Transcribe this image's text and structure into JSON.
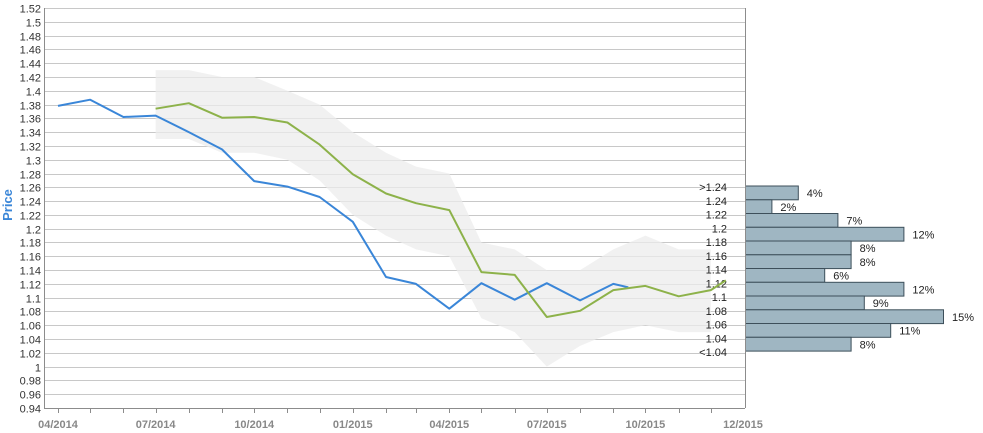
{
  "chart_data": {
    "type": "line",
    "title": "",
    "ylabel": "Price",
    "xlabel": "",
    "ylim": [
      0.94,
      1.52
    ],
    "y_ticks": [
      "0.94",
      "0.96",
      "0.98",
      "1",
      "1.02",
      "1.04",
      "1.06",
      "1.08",
      "1.1",
      "1.12",
      "1.14",
      "1.16",
      "1.18",
      "1.2",
      "1.22",
      "1.24",
      "1.26",
      "1.28",
      "1.3",
      "1.32",
      "1.34",
      "1.36",
      "1.38",
      "1.4",
      "1.42",
      "1.44",
      "1.46",
      "1.48",
      "1.5",
      "1.52"
    ],
    "x_ticks": [
      "04/2014",
      "07/2014",
      "10/2014",
      "01/2015",
      "04/2015",
      "07/2015",
      "10/2015",
      "12/2015"
    ],
    "colors": {
      "historical": "#3a86d8",
      "forecast": "#8db24a",
      "band": "#ececec",
      "histogram": "#9fb6c2",
      "histogram_border": "#3d4f5a"
    },
    "series": [
      {
        "key": "historical",
        "x": [
          "2014-04-01",
          "2014-05-01",
          "2014-06-01",
          "2014-07-01",
          "2014-08-01",
          "2014-09-01",
          "2014-10-01",
          "2014-11-01",
          "2014-12-01",
          "2015-01-01",
          "2015-02-01",
          "2015-03-01",
          "2015-04-01",
          "2015-05-01",
          "2015-06-01",
          "2015-07-01",
          "2015-08-01",
          "2015-09-01",
          "2015-09-15"
        ],
        "values": [
          1.378,
          1.387,
          1.362,
          1.364,
          1.34,
          1.315,
          1.269,
          1.261,
          1.246,
          1.21,
          1.13,
          1.12,
          1.084,
          1.121,
          1.097,
          1.121,
          1.096,
          1.12,
          1.115
        ]
      },
      {
        "key": "forecast",
        "x": [
          "2014-07-01",
          "2014-08-01",
          "2014-09-01",
          "2014-10-01",
          "2014-11-01",
          "2014-12-01",
          "2015-01-01",
          "2015-02-01",
          "2015-03-01",
          "2015-04-01",
          "2015-05-01",
          "2015-06-01",
          "2015-07-01",
          "2015-08-01",
          "2015-09-01",
          "2015-10-01",
          "2015-11-01",
          "2015-12-01",
          "2015-12-15"
        ],
        "values": [
          1.374,
          1.382,
          1.361,
          1.362,
          1.354,
          1.322,
          1.279,
          1.251,
          1.237,
          1.227,
          1.137,
          1.133,
          1.072,
          1.081,
          1.111,
          1.117,
          1.102,
          1.111,
          1.125
        ]
      }
    ],
    "band": {
      "x": [
        "2014-07-01",
        "2014-08-01",
        "2014-09-01",
        "2014-10-01",
        "2014-11-01",
        "2014-12-01",
        "2015-01-01",
        "2015-02-01",
        "2015-03-01",
        "2015-04-01",
        "2015-05-01",
        "2015-06-01",
        "2015-07-01",
        "2015-08-01",
        "2015-09-01",
        "2015-10-01",
        "2015-11-01",
        "2015-12-01"
      ],
      "upper": [
        1.43,
        1.43,
        1.42,
        1.42,
        1.4,
        1.38,
        1.34,
        1.31,
        1.29,
        1.28,
        1.18,
        1.17,
        1.14,
        1.14,
        1.17,
        1.19,
        1.17,
        1.17
      ],
      "lower": [
        1.33,
        1.33,
        1.31,
        1.31,
        1.3,
        1.27,
        1.22,
        1.19,
        1.17,
        1.16,
        1.07,
        1.05,
        1.0,
        1.03,
        1.05,
        1.06,
        1.05,
        1.05
      ]
    },
    "histogram": [
      {
        "label": ">1.24",
        "pct": "4%",
        "value": 4
      },
      {
        "label": "1.24",
        "pct": "2%",
        "value": 2
      },
      {
        "label": "1.22",
        "pct": "7%",
        "value": 7
      },
      {
        "label": "1.2",
        "pct": "12%",
        "value": 12
      },
      {
        "label": "1.18",
        "pct": "8%",
        "value": 8
      },
      {
        "label": "1.16",
        "pct": "8%",
        "value": 8
      },
      {
        "label": "1.14",
        "pct": "6%",
        "value": 6
      },
      {
        "label": "1.12",
        "pct": "12%",
        "value": 12
      },
      {
        "label": "1.1",
        "pct": "9%",
        "value": 9
      },
      {
        "label": "1.08",
        "pct": "15%",
        "value": 15
      },
      {
        "label": "1.06",
        "pct": "11%",
        "value": 11
      },
      {
        "label": "1.04",
        "pct": "8%",
        "value": 8
      },
      {
        "label": "<1.04",
        "pct": "",
        "value": 0
      }
    ],
    "grid": true,
    "legend": "none"
  }
}
